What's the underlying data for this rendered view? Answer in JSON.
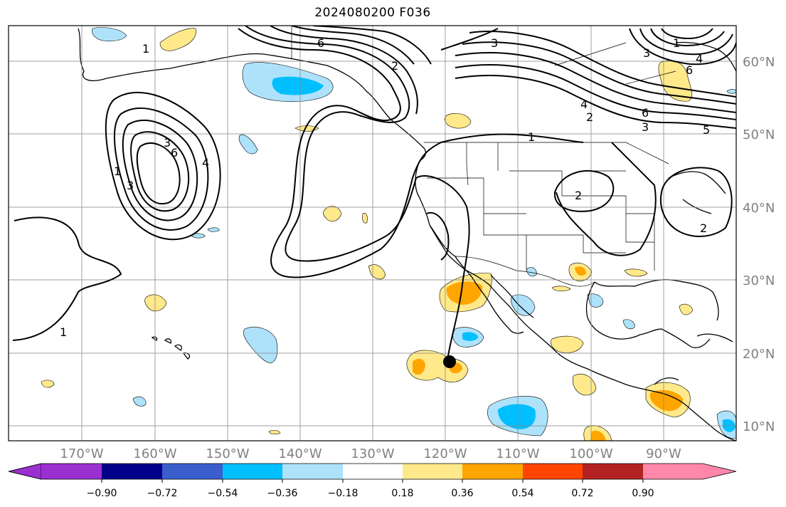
{
  "title": "2024080200 F036",
  "longitude_labels": [
    "170°W",
    "160°W",
    "150°W",
    "140°W",
    "130°W",
    "120°W",
    "110°W",
    "100°W",
    "90°W"
  ],
  "latitude_labels": [
    "60°N",
    "50°N",
    "40°N",
    "30°N",
    "20°N",
    "10°N"
  ],
  "colorbar": {
    "tick_labels": [
      "−0.90",
      "−0.72",
      "−0.54",
      "−0.36",
      "−0.18",
      "0.18",
      "0.36",
      "0.54",
      "0.72",
      "0.90"
    ],
    "colors": [
      "#9b30d0",
      "#00008b",
      "#3a5fcd",
      "#00bfff",
      "#aee2fb",
      "#ffffff",
      "#ffe98a",
      "#ffa500",
      "#ff4500",
      "#b22222",
      "#ff88aa"
    ]
  },
  "contour_labels": {
    "c1": "1",
    "c2": "1",
    "c3": "1",
    "c4": "6",
    "c5": "3",
    "c6": "4",
    "c7": "2",
    "c8": "6",
    "c9": "3",
    "c10": "5",
    "c11": "1",
    "c12": "2",
    "c13": "2",
    "c14": "3",
    "c15": "6",
    "c16": "4",
    "c17": "3",
    "c18": "1",
    "c19": "6",
    "c20": "4",
    "c21": "3",
    "c22": "2"
  }
}
